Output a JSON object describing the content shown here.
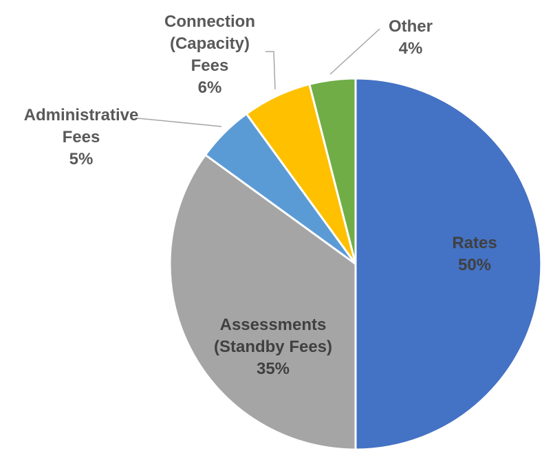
{
  "chart_data": {
    "type": "pie",
    "categories": [
      "Rates",
      "Assessments (Standby Fees)",
      "Administrative Fees",
      "Connection (Capacity) Fees",
      "Other"
    ],
    "values": [
      50,
      35,
      5,
      6,
      4
    ],
    "value_labels": [
      "50%",
      "35%",
      "5%",
      "6%",
      "4%"
    ],
    "colors": [
      "#4472c4",
      "#a5a5a5",
      "#5b9bd5",
      "#ffc000",
      "#70ad47"
    ]
  }
}
